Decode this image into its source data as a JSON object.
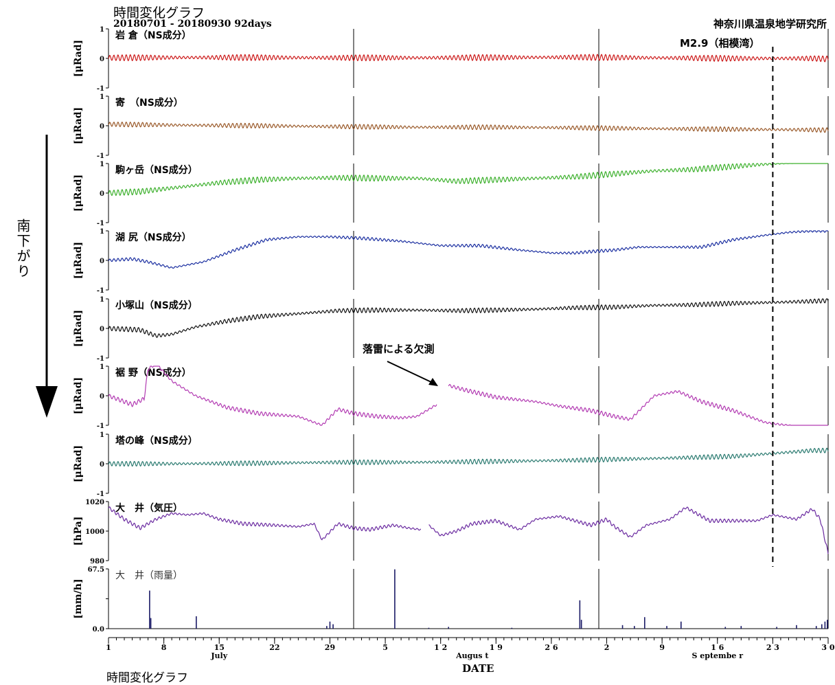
{
  "header": {
    "title": "時間変化グラフ",
    "range": "20180701 - 20180930 92days",
    "organization": "神奈川県温泉地学研究所"
  },
  "event": {
    "label": "M2.9（相模湾）",
    "day": 85
  },
  "side_label": "南下がり",
  "annotation": "落雷による欠測",
  "footer": "時間変化グラフ",
  "chart_data": {
    "type": "line",
    "days": 92,
    "month_boundaries": [
      32,
      63
    ],
    "x_ticks": [
      {
        "day": 1,
        "label": "1"
      },
      {
        "day": 8,
        "label": "8"
      },
      {
        "day": 15,
        "label": "15"
      },
      {
        "day": 22,
        "label": "22"
      },
      {
        "day": 29,
        "label": "29"
      },
      {
        "day": 36,
        "label": "5"
      },
      {
        "day": 43,
        "label": "1 2"
      },
      {
        "day": 50,
        "label": "1 9"
      },
      {
        "day": 57,
        "label": "2 6"
      },
      {
        "day": 64,
        "label": "2"
      },
      {
        "day": 71,
        "label": "9"
      },
      {
        "day": 78,
        "label": "1 6"
      },
      {
        "day": 85,
        "label": "2 3"
      },
      {
        "day": 92,
        "label": "3 0"
      }
    ],
    "month_labels": [
      {
        "day": 15,
        "label": "July"
      },
      {
        "day": 47,
        "label": "Augus t"
      },
      {
        "day": 78,
        "label": "S     eptembe  r"
      }
    ],
    "xlabel": "DATE",
    "panels": [
      {
        "name": "岩 倉（NS成分）",
        "ylabel": "[μRad]",
        "ylim": [
          -1,
          1
        ],
        "yticks": [
          "1",
          "0",
          "-1"
        ],
        "color": "#cc1a1a",
        "amp": 0.1,
        "x": [
          1,
          10,
          20,
          30,
          40,
          50,
          60,
          70,
          80,
          90,
          92
        ],
        "y": [
          0.02,
          0.03,
          0.03,
          0.02,
          0.02,
          0.03,
          0.04,
          0.02,
          0.0,
          0.0,
          -0.02
        ]
      },
      {
        "name": "寄　（NS成分）",
        "ylabel": "[μRad]",
        "ylim": [
          -1,
          1
        ],
        "yticks": [
          "1",
          "0",
          "-1"
        ],
        "color": "#9a5a2a",
        "amp": 0.08,
        "x": [
          1,
          10,
          20,
          30,
          40,
          50,
          60,
          70,
          80,
          90,
          92
        ],
        "y": [
          0.05,
          0.02,
          0.0,
          -0.03,
          -0.05,
          -0.05,
          -0.07,
          -0.1,
          -0.12,
          -0.14,
          -0.15
        ]
      },
      {
        "name": "駒ヶ岳（NS成分）",
        "ylabel": "[μRad]",
        "ylim": [
          -1,
          1
        ],
        "yticks": [
          "1",
          "0",
          "-1"
        ],
        "color": "#3cb02c",
        "amp": 0.1,
        "x": [
          1,
          5,
          10,
          15,
          20,
          25,
          30,
          35,
          40,
          45,
          50,
          55,
          60,
          65,
          70,
          75,
          80,
          85,
          90,
          92
        ],
        "y": [
          0.0,
          0.05,
          0.2,
          0.35,
          0.45,
          0.5,
          0.52,
          0.5,
          0.5,
          0.4,
          0.45,
          0.5,
          0.55,
          0.65,
          0.75,
          0.8,
          0.9,
          1.0,
          1.1,
          1.1
        ]
      },
      {
        "name": "湖 尻（NS成分）",
        "ylabel": "[μRad]",
        "ylim": [
          -1,
          1
        ],
        "yticks": [
          "1",
          "0",
          "-1"
        ],
        "color": "#1a2ea0",
        "amp": 0.05,
        "x": [
          1,
          4,
          6,
          9,
          13,
          17,
          21,
          25,
          29,
          33,
          38,
          43,
          48,
          53,
          57,
          60,
          62,
          65,
          68,
          72,
          76,
          80,
          84,
          87,
          90,
          92
        ],
        "y": [
          0.0,
          0.05,
          -0.05,
          -0.25,
          -0.05,
          0.35,
          0.7,
          0.8,
          0.8,
          0.75,
          0.65,
          0.5,
          0.5,
          0.35,
          0.25,
          0.25,
          0.3,
          0.35,
          0.45,
          0.45,
          0.45,
          0.7,
          0.85,
          0.95,
          1.0,
          1.0
        ]
      },
      {
        "name": "小塚山（NS成分）",
        "ylabel": "[μRad]",
        "ylim": [
          -1,
          1
        ],
        "yticks": [
          "1",
          "0",
          "-1"
        ],
        "color": "#111111",
        "amp": 0.08,
        "x": [
          1,
          5,
          7,
          9,
          12,
          16,
          20,
          25,
          30,
          35,
          40,
          45,
          50,
          55,
          60,
          65,
          70,
          75,
          80,
          85,
          90,
          92
        ],
        "y": [
          0.0,
          -0.05,
          -0.25,
          -0.2,
          0.05,
          0.25,
          0.4,
          0.5,
          0.6,
          0.62,
          0.62,
          0.6,
          0.62,
          0.65,
          0.7,
          0.72,
          0.78,
          0.8,
          0.85,
          0.88,
          0.92,
          0.95
        ]
      },
      {
        "name": "裾 野（NS成分）",
        "ylabel": "[μRad]",
        "ylim": [
          -1,
          1
        ],
        "yticks": [
          "1",
          "0",
          "-1"
        ],
        "color": "#b23ab2",
        "amp": 0.07,
        "x": [
          1,
          4,
          5.5,
          6,
          7,
          9,
          12,
          16,
          20,
          25,
          28,
          30,
          32,
          35,
          38,
          40,
          42.5
        ],
        "y": [
          0.0,
          -0.3,
          -0.1,
          0.9,
          1.1,
          0.5,
          0.0,
          -0.4,
          -0.6,
          -0.7,
          -1.0,
          -0.45,
          -0.6,
          -0.7,
          -0.75,
          -0.7,
          -0.3
        ],
        "x2": [
          44,
          46,
          50,
          55,
          58,
          62,
          65,
          67,
          70,
          73,
          76,
          80,
          84,
          88,
          91,
          92
        ],
        "y2": [
          0.35,
          0.2,
          -0.05,
          -0.2,
          -0.35,
          -0.5,
          -0.7,
          -0.8,
          0.0,
          0.15,
          -0.2,
          -0.5,
          -0.9,
          -1.05,
          -1.1,
          -1.5
        ]
      },
      {
        "name": "塔の峰（NS成分）",
        "ylabel": "[μRad]",
        "ylim": [
          -1,
          1
        ],
        "yticks": [
          "1",
          "0",
          "-1"
        ],
        "color": "#2a7a70",
        "amp": 0.08,
        "x": [
          1,
          10,
          20,
          30,
          40,
          50,
          60,
          70,
          80,
          90,
          92
        ],
        "y": [
          0.0,
          0.0,
          0.02,
          0.05,
          0.05,
          0.08,
          0.12,
          0.18,
          0.25,
          0.45,
          0.45
        ]
      },
      {
        "name": "大　井（気圧）",
        "ylabel": "[hPa]",
        "ylim": [
          980,
          1020
        ],
        "yticks": [
          "1020",
          "1000",
          "980"
        ],
        "color": "#6a2aa0",
        "amp": 1.2,
        "x": [
          1,
          3,
          5,
          7,
          9,
          11,
          13,
          15,
          18,
          22,
          25,
          27,
          28,
          30,
          32,
          34,
          37,
          39,
          40.5
        ],
        "y": [
          1016,
          1008,
          1002,
          1008,
          1012,
          1011,
          1012,
          1008,
          1005,
          1004,
          1003,
          1005,
          994,
          1005,
          1002,
          1001,
          1004,
          1002,
          1001
        ],
        "x2": [
          41.5,
          43,
          45,
          47,
          50,
          53,
          55,
          58,
          62,
          64,
          65,
          67,
          69,
          72,
          74,
          77,
          80,
          83,
          85,
          88,
          90,
          91,
          92
        ],
        "y2": [
          1004,
          997,
          1000,
          1005,
          1007,
          1001,
          1008,
          1010,
          1004,
          1008,
          1003,
          996,
          1004,
          1008,
          1016,
          1007,
          1007,
          1007,
          1011,
          1008,
          1015,
          1008,
          985
        ]
      },
      {
        "name": "大　井（雨量）",
        "ylabel": "[mm/h]",
        "ylim": [
          0,
          67.5
        ],
        "yticks": [
          "67.5",
          "",
          "0.0"
        ],
        "color": "#1a1a66",
        "bars": [
          {
            "day": 6.2,
            "value": 43
          },
          {
            "day": 6.35,
            "value": 12
          },
          {
            "day": 12.1,
            "value": 14
          },
          {
            "day": 29,
            "value": 8
          },
          {
            "day": 29.4,
            "value": 5
          },
          {
            "day": 28.6,
            "value": 3
          },
          {
            "day": 37.2,
            "value": 67
          },
          {
            "day": 41.5,
            "value": 1
          },
          {
            "day": 44,
            "value": 2
          },
          {
            "day": 52,
            "value": 1
          },
          {
            "day": 60.6,
            "value": 32
          },
          {
            "day": 60.8,
            "value": 10
          },
          {
            "day": 66,
            "value": 4
          },
          {
            "day": 67.5,
            "value": 3
          },
          {
            "day": 68.8,
            "value": 13
          },
          {
            "day": 71.6,
            "value": 3
          },
          {
            "day": 73.4,
            "value": 8
          },
          {
            "day": 79,
            "value": 2
          },
          {
            "day": 81,
            "value": 3
          },
          {
            "day": 85.5,
            "value": 2
          },
          {
            "day": 88,
            "value": 4
          },
          {
            "day": 90.5,
            "value": 3
          },
          {
            "day": 91.2,
            "value": 5
          },
          {
            "day": 91.6,
            "value": 8
          },
          {
            "day": 91.9,
            "value": 10
          }
        ]
      }
    ]
  }
}
